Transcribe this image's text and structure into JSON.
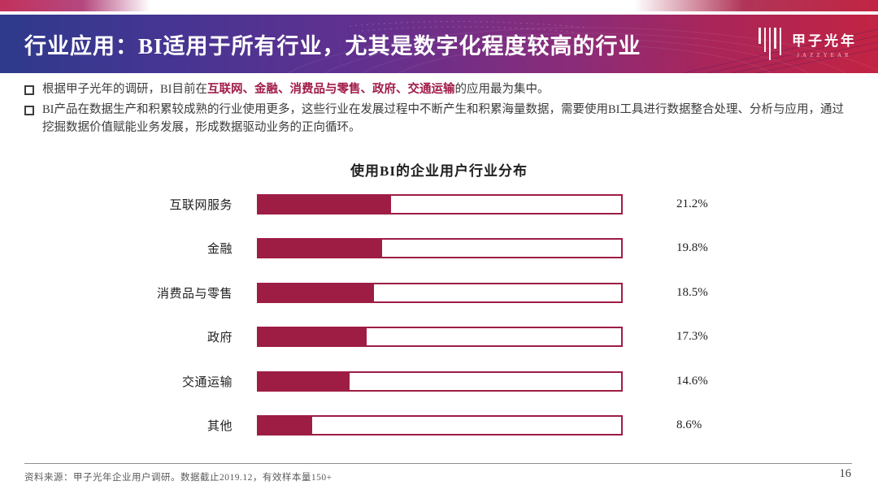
{
  "header": {
    "title": "行业应用：BI适用于所有行业，尤其是数字化程度较高的行业",
    "logo": {
      "name": "甲子光年",
      "subtitle": "JAZZYEAR",
      "icon": "vertical-bars-logo-icon"
    }
  },
  "bullets": [
    {
      "prefix": "根据甲子光年的调研，BI目前在",
      "highlight": "互联网、金融、消费品与零售、政府、交通运输",
      "suffix": "的应用最为集中。"
    },
    {
      "text": "BI产品在数据生产和积累较成熟的行业使用更多，这些行业在发展过程中不断产生和积累海量数据，需要使用BI工具进行数据整合处理、分析与应用，通过挖掘数据价值赋能业务发展，形成数据驱动业务的正向循环。"
    }
  ],
  "chart_data": {
    "type": "bar",
    "orientation": "horizontal",
    "title": "使用BI的企业用户行业分布",
    "categories": [
      "互联网服务",
      "金融",
      "消费品与零售",
      "政府",
      "交通运输",
      "其他"
    ],
    "values": [
      21.2,
      19.8,
      18.5,
      17.3,
      14.6,
      8.6
    ],
    "value_labels": [
      "21.2%",
      "19.8%",
      "18.5%",
      "17.3%",
      "14.6%",
      "8.6%"
    ],
    "xlim": [
      0,
      58
    ],
    "grid": false,
    "legend": false,
    "bar_style": "outlined-track-with-partial-fill"
  },
  "footer": {
    "source": "资料来源：甲子光年企业用户调研。数据截止2019.12，有效样本量150+",
    "page_number": "16"
  },
  "colors": {
    "accent_crimson": "#9e1d45",
    "highlight_text": "#a01c47",
    "banner_gradient_start": "#2e3a8c",
    "banner_gradient_mid": "#63308f",
    "banner_gradient_end": "#c22443",
    "body_text": "#3b3b3b",
    "footer_text": "#5a5a5a"
  }
}
